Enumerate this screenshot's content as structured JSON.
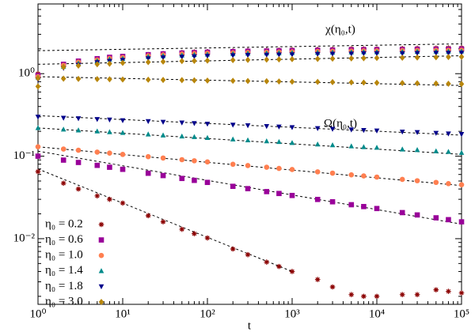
{
  "chart_data": {
    "type": "scatter",
    "x_label": "t",
    "annotations": [
      "χ(η₀,t)",
      "Ω(η₀,t)"
    ],
    "log_x": true,
    "log_y": true,
    "xlim": [
      1,
      100000
    ],
    "ylim": [
      0.0016,
      7
    ],
    "xticks": [
      {
        "value": 1,
        "label": "10⁰"
      },
      {
        "value": 10,
        "label": "10¹"
      },
      {
        "value": 100,
        "label": "10²"
      },
      {
        "value": 1000,
        "label": "10³"
      },
      {
        "value": 10000,
        "label": "10⁴"
      },
      {
        "value": 100000,
        "label": "10⁵"
      }
    ],
    "yticks": [
      {
        "value": 0.01,
        "label": "10⁻²"
      },
      {
        "value": 0.1,
        "label": "10⁻¹"
      },
      {
        "value": 1,
        "label": "10⁰"
      }
    ],
    "x": [
      1,
      2,
      3,
      5,
      7,
      10,
      20,
      30,
      50,
      70,
      100,
      200,
      300,
      500,
      700,
      1000,
      2000,
      3000,
      5000,
      7000,
      10000,
      20000,
      30000,
      50000,
      70000,
      100000
    ],
    "series": [
      {
        "name": "η₀ = 0.2",
        "color": "#8b0000",
        "marker": "asterisk",
        "values": [
          0.065,
          0.047,
          0.04,
          0.033,
          0.03,
          0.027,
          0.019,
          0.016,
          0.013,
          0.0115,
          0.0102,
          0.0075,
          0.0064,
          0.0052,
          0.0046,
          0.004,
          0.0032,
          0.0026,
          0.0021,
          0.002,
          0.002,
          0.0021,
          0.0021,
          0.0024,
          0.0023,
          0.0022
        ],
        "chi_values": [
          1.0,
          1.3,
          1.4,
          1.5,
          1.55,
          1.6,
          1.7,
          1.75,
          1.8,
          1.83,
          1.85,
          1.88,
          1.9,
          1.92,
          1.93,
          1.95,
          1.97,
          1.98,
          2.0,
          2.0,
          2.0,
          2.02,
          2.03,
          2.04,
          2.05,
          2.05
        ]
      },
      {
        "name": "η₀ = 0.6",
        "color": "#990099",
        "marker": "square",
        "values": [
          0.1,
          0.0896,
          0.0839,
          0.0774,
          0.0734,
          0.0693,
          0.0621,
          0.0582,
          0.0537,
          0.0509,
          0.0481,
          0.0431,
          0.0404,
          0.0372,
          0.0353,
          0.0334,
          0.0299,
          0.028,
          0.0258,
          0.0245,
          0.0232,
          0.0207,
          0.0194,
          0.0179,
          0.017,
          0.016
        ],
        "chi_values": [
          0.95,
          1.3,
          1.42,
          1.52,
          1.58,
          1.62,
          1.7,
          1.74,
          1.78,
          1.8,
          1.82,
          1.85,
          1.87,
          1.88,
          1.89,
          1.9,
          1.92,
          1.93,
          1.94,
          1.95,
          1.95,
          1.96,
          1.97,
          1.98,
          1.98,
          1.99
        ]
      },
      {
        "name": "η₀ = 1.0",
        "color": "#ff7f50",
        "marker": "circle",
        "values": [
          0.13,
          0.122,
          0.118,
          0.112,
          0.109,
          0.105,
          0.0987,
          0.095,
          0.0907,
          0.088,
          0.0852,
          0.0798,
          0.077,
          0.0735,
          0.0711,
          0.0689,
          0.0646,
          0.0623,
          0.0594,
          0.0576,
          0.0558,
          0.0523,
          0.0504,
          0.0481,
          0.0465,
          0.0451
        ],
        "chi_values": [
          0.92,
          1.26,
          1.38,
          1.47,
          1.53,
          1.57,
          1.65,
          1.69,
          1.73,
          1.75,
          1.77,
          1.79,
          1.81,
          1.82,
          1.83,
          1.84,
          1.86,
          1.87,
          1.88,
          1.89,
          1.89,
          1.9,
          1.91,
          1.92,
          1.92,
          1.93
        ]
      },
      {
        "name": "η₀ = 1.4",
        "color": "#008b8b",
        "marker": "triangle-up",
        "values": [
          0.22,
          0.211,
          0.206,
          0.2,
          0.196,
          0.192,
          0.184,
          0.179,
          0.174,
          0.171,
          0.167,
          0.16,
          0.156,
          0.152,
          0.149,
          0.145,
          0.139,
          0.136,
          0.132,
          0.129,
          0.127,
          0.121,
          0.119,
          0.115,
          0.113,
          0.11
        ],
        "chi_values": [
          0.9,
          1.22,
          1.33,
          1.43,
          1.49,
          1.52,
          1.6,
          1.64,
          1.67,
          1.69,
          1.71,
          1.74,
          1.76,
          1.77,
          1.78,
          1.79,
          1.8,
          1.81,
          1.82,
          1.83,
          1.83,
          1.84,
          1.85,
          1.86,
          1.86,
          1.87
        ]
      },
      {
        "name": "η₀ = 1.8",
        "color": "#00008b",
        "marker": "triangle-down",
        "values": [
          0.3,
          0.291,
          0.287,
          0.281,
          0.277,
          0.272,
          0.265,
          0.26,
          0.255,
          0.251,
          0.247,
          0.24,
          0.236,
          0.231,
          0.228,
          0.224,
          0.218,
          0.214,
          0.21,
          0.207,
          0.204,
          0.198,
          0.195,
          0.191,
          0.188,
          0.185
        ],
        "chi_values": [
          0.85,
          1.17,
          1.28,
          1.37,
          1.42,
          1.46,
          1.53,
          1.57,
          1.6,
          1.62,
          1.64,
          1.67,
          1.68,
          1.69,
          1.7,
          1.71,
          1.73,
          1.74,
          1.75,
          1.76,
          1.76,
          1.76,
          1.77,
          1.78,
          1.78,
          1.79
        ]
      },
      {
        "name": "η₀ = 3.0",
        "color": "#b8860b",
        "marker": "diamond",
        "values": [
          0.88,
          0.87,
          0.865,
          0.86,
          0.855,
          0.85,
          0.845,
          0.84,
          0.835,
          0.83,
          0.825,
          0.82,
          0.815,
          0.81,
          0.805,
          0.8,
          0.795,
          0.79,
          0.785,
          0.78,
          0.775,
          0.77,
          0.765,
          0.76,
          0.755,
          0.75
        ],
        "chi_values": [
          0.7,
          1.2,
          1.25,
          1.3,
          1.32,
          1.35,
          1.38,
          1.4,
          1.42,
          1.43,
          1.44,
          1.46,
          1.47,
          1.48,
          1.49,
          1.5,
          1.51,
          1.52,
          1.53,
          1.54,
          1.55,
          1.56,
          1.57,
          1.58,
          1.59,
          1.6
        ]
      }
    ],
    "fits": [
      {
        "x": [
          1,
          100000
        ],
        "values": [
          1.9,
          2.3
        ]
      },
      {
        "x": [
          1,
          100000
        ],
        "values": [
          1.3,
          1.65
        ]
      },
      {
        "x": [
          1,
          100000
        ],
        "values": [
          0.92,
          0.72
        ]
      },
      {
        "x": [
          1,
          100000
        ],
        "values": [
          0.31,
          0.18
        ]
      },
      {
        "x": [
          1,
          100000
        ],
        "values": [
          0.22,
          0.105
        ]
      },
      {
        "x": [
          1,
          100000
        ],
        "values": [
          0.13,
          0.044
        ]
      },
      {
        "x": [
          1,
          100000
        ],
        "values": [
          0.115,
          0.015
        ]
      },
      {
        "x": [
          1,
          1000
        ],
        "values": [
          0.07,
          0.004
        ]
      }
    ]
  }
}
